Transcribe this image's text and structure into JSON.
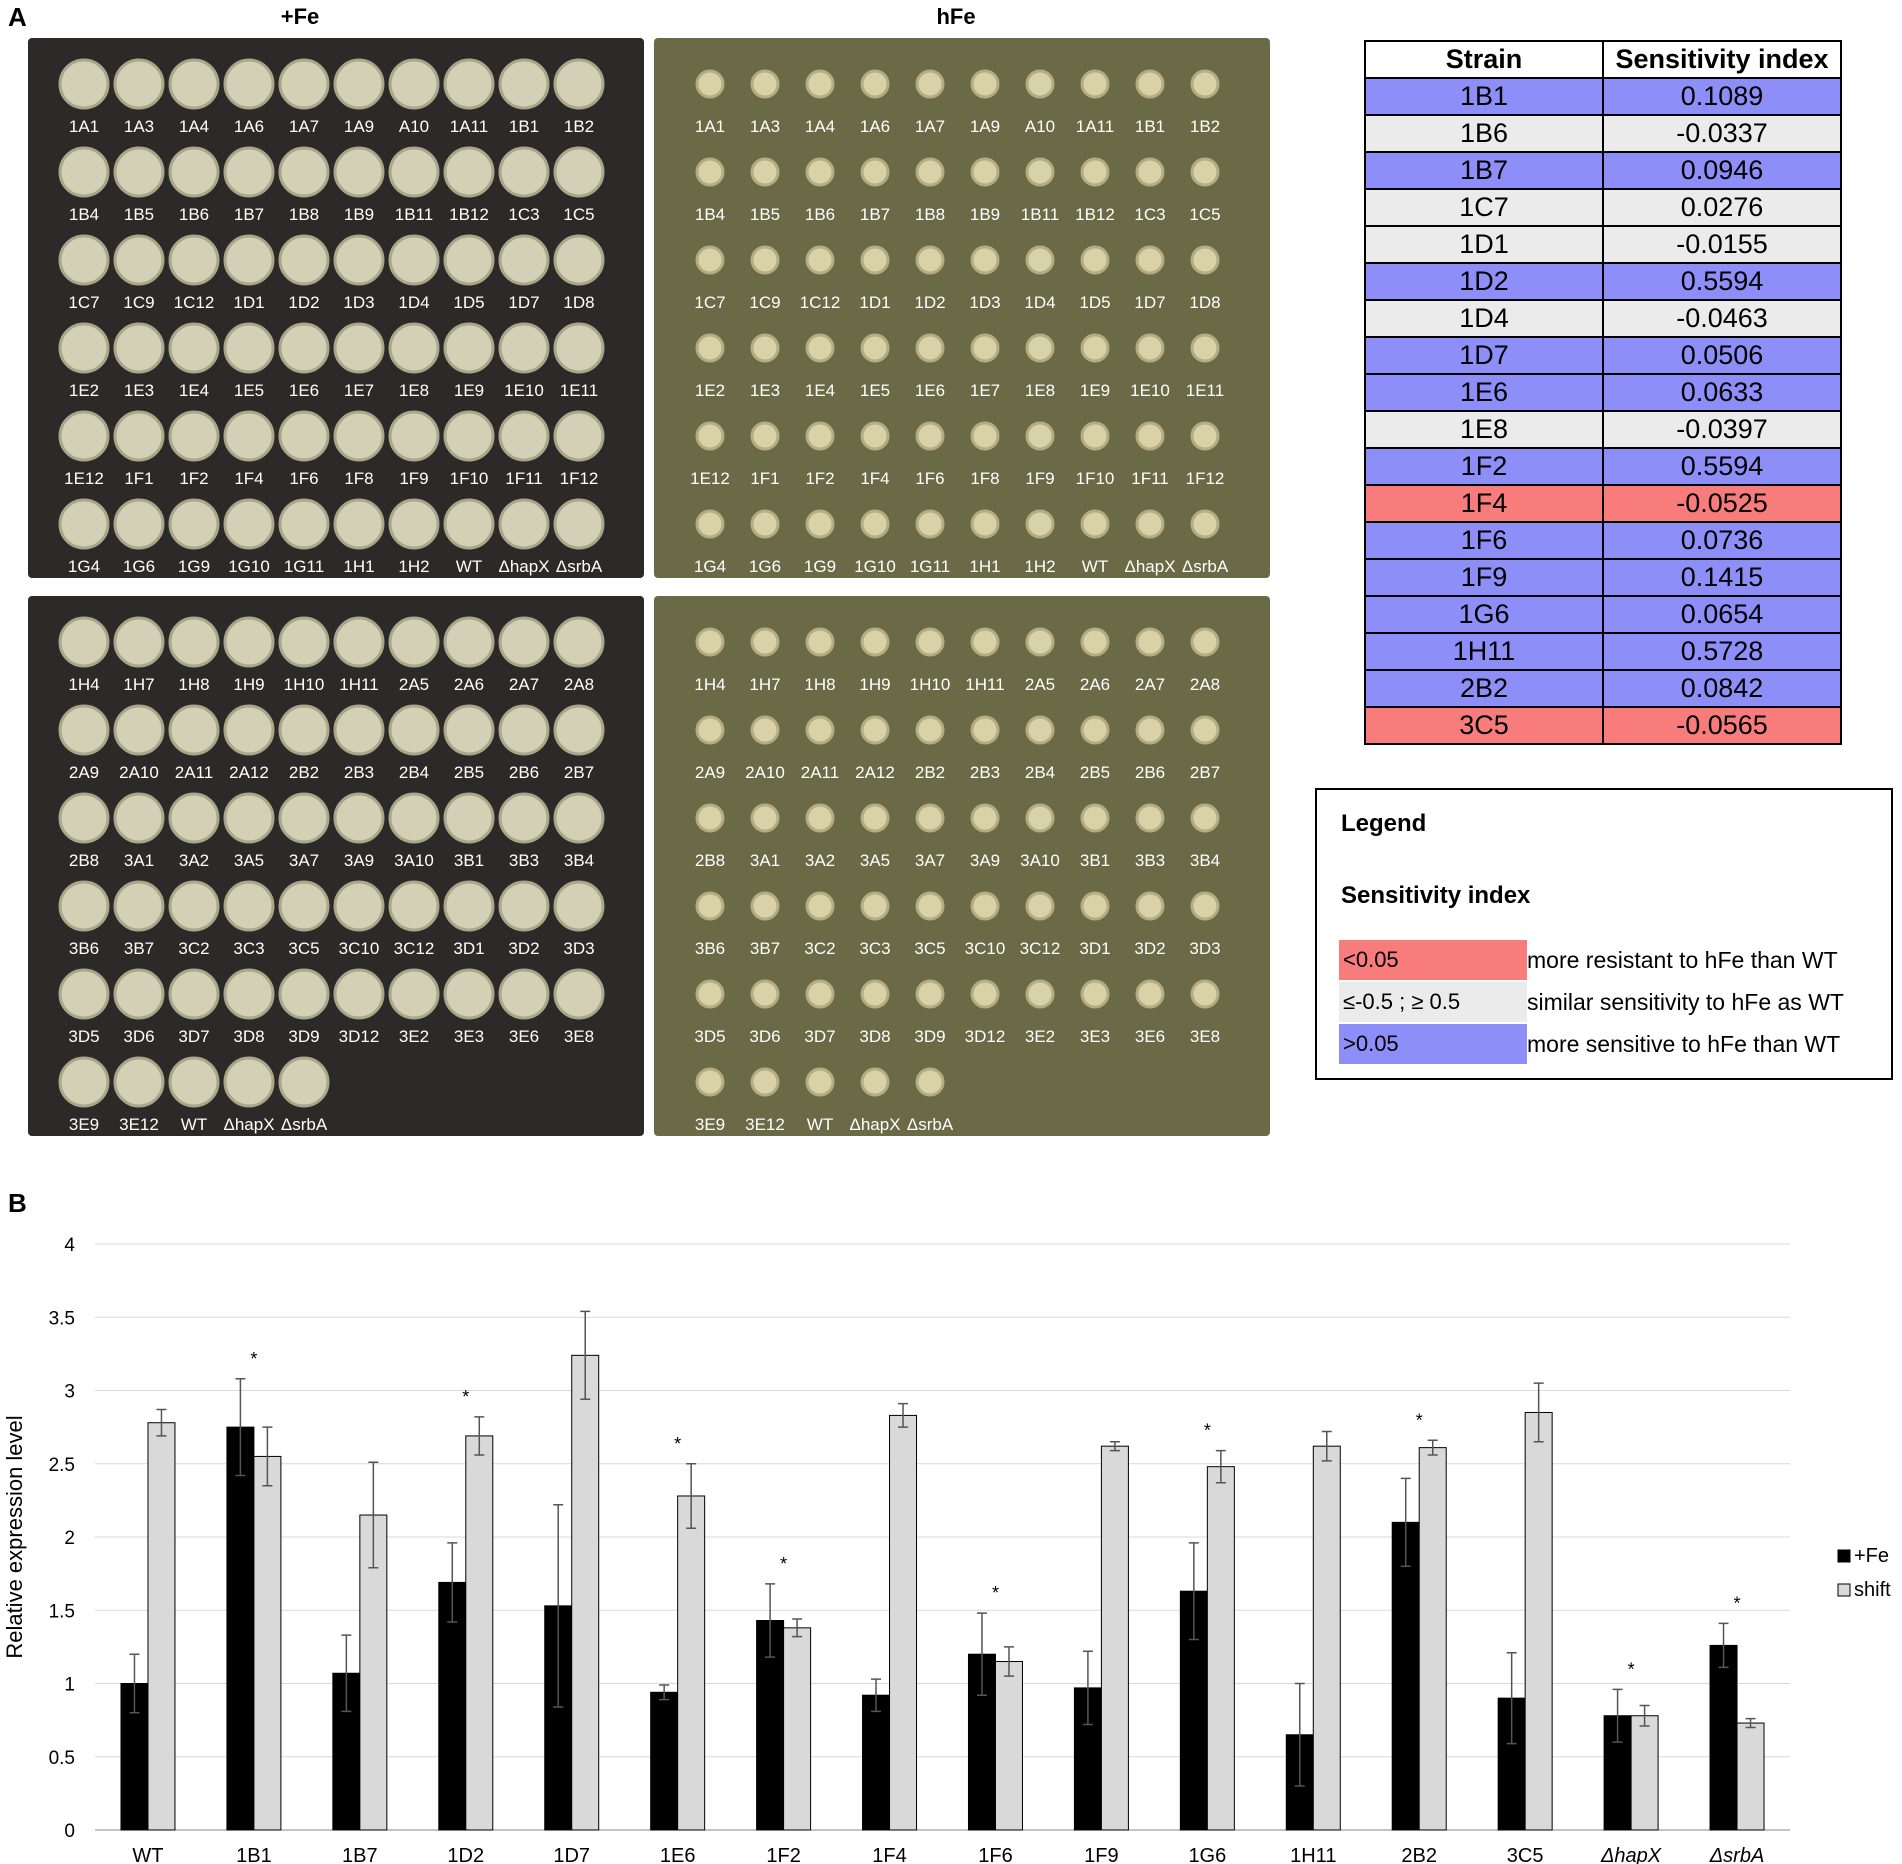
{
  "panel_a": {
    "label": "A",
    "plate_titles": [
      "+Fe",
      "hFe"
    ],
    "plate_rows_top": [
      [
        "1A1",
        "1A3",
        "1A4",
        "1A6",
        "1A7",
        "1A9",
        "A10",
        "1A11",
        "1B1",
        "1B2"
      ],
      [
        "1B4",
        "1B5",
        "1B6",
        "1B7",
        "1B8",
        "1B9",
        "1B11",
        "1B12",
        "1C3",
        "1C5"
      ],
      [
        "1C7",
        "1C9",
        "1C12",
        "1D1",
        "1D2",
        "1D3",
        "1D4",
        "1D5",
        "1D7",
        "1D8"
      ],
      [
        "1E2",
        "1E3",
        "1E4",
        "1E5",
        "1E6",
        "1E7",
        "1E8",
        "1E9",
        "1E10",
        "1E11"
      ],
      [
        "1E12",
        "1F1",
        "1F2",
        "1F4",
        "1F6",
        "1F8",
        "1F9",
        "1F10",
        "1F11",
        "1F12"
      ],
      [
        "1G4",
        "1G6",
        "1G9",
        "1G10",
        "1G11",
        "1H1",
        "1H2",
        "WT",
        "ΔhapX",
        "ΔsrbA"
      ]
    ],
    "plate_rows_bottom": [
      [
        "1H4",
        "1H7",
        "1H8",
        "1H9",
        "1H10",
        "1H11",
        "2A5",
        "2A6",
        "2A7",
        "2A8"
      ],
      [
        "2A9",
        "2A10",
        "2A11",
        "2A12",
        "2B2",
        "2B3",
        "2B4",
        "2B5",
        "2B6",
        "2B7"
      ],
      [
        "2B8",
        "3A1",
        "3A2",
        "3A5",
        "3A7",
        "3A9",
        "3A10",
        "3B1",
        "3B3",
        "3B4"
      ],
      [
        "3B6",
        "3B7",
        "3C2",
        "3C3",
        "3C5",
        "3C10",
        "3C12",
        "3D1",
        "3D2",
        "3D3"
      ],
      [
        "3D5",
        "3D6",
        "3D7",
        "3D8",
        "3D9",
        "3D12",
        "3E2",
        "3E3",
        "3E6",
        "3E8"
      ],
      [
        "3E9",
        "3E12",
        "WT",
        "ΔhapX",
        "ΔsrbA"
      ]
    ],
    "sensitivity_table": {
      "headers": [
        "Strain",
        "Sensitivity index"
      ],
      "rows": [
        {
          "strain": "1B1",
          "index": "0.1089",
          "class": "sensitive"
        },
        {
          "strain": "1B6",
          "index": "-0.0337",
          "class": "similar"
        },
        {
          "strain": "1B7",
          "index": "0.0946",
          "class": "sensitive"
        },
        {
          "strain": "1C7",
          "index": "0.0276",
          "class": "similar"
        },
        {
          "strain": "1D1",
          "index": "-0.0155",
          "class": "similar"
        },
        {
          "strain": "1D2",
          "index": "0.5594",
          "class": "sensitive"
        },
        {
          "strain": "1D4",
          "index": "-0.0463",
          "class": "similar"
        },
        {
          "strain": "1D7",
          "index": "0.0506",
          "class": "sensitive"
        },
        {
          "strain": "1E6",
          "index": "0.0633",
          "class": "sensitive"
        },
        {
          "strain": "1E8",
          "index": "-0.0397",
          "class": "similar"
        },
        {
          "strain": "1F2",
          "index": "0.5594",
          "class": "sensitive"
        },
        {
          "strain": "1F4",
          "index": "-0.0525",
          "class": "resistant"
        },
        {
          "strain": "1F6",
          "index": "0.0736",
          "class": "sensitive"
        },
        {
          "strain": "1F9",
          "index": "0.1415",
          "class": "sensitive"
        },
        {
          "strain": "1G6",
          "index": "0.0654",
          "class": "sensitive"
        },
        {
          "strain": "1H11",
          "index": "0.5728",
          "class": "sensitive"
        },
        {
          "strain": "2B2",
          "index": "0.0842",
          "class": "sensitive"
        },
        {
          "strain": "3C5",
          "index": "-0.0565",
          "class": "resistant"
        }
      ]
    },
    "colors": {
      "sensitive": "#8e8ef8",
      "similar": "#ebebeb",
      "resistant": "#f87c7c"
    },
    "legend": {
      "title": "Legend",
      "subtitle": "Sensitivity index",
      "items": [
        {
          "range": "<0.05",
          "text": "more resistant to hFe than WT",
          "class": "resistant"
        },
        {
          "range": "≤-0.5 ; ≥ 0.5",
          "text": "similar sensitivity to hFe as WT",
          "class": "similar"
        },
        {
          "range": ">0.05",
          "text": "more sensitive to hFe than WT",
          "class": "sensitive"
        }
      ]
    }
  },
  "panel_b": {
    "label": "B"
  },
  "chart_data": {
    "type": "bar",
    "title": "",
    "xlabel": "",
    "ylabel": "Relative expression level",
    "ylim": [
      0,
      4
    ],
    "yticks": [
      "0",
      "0.5",
      "1",
      "1.5",
      "2",
      "2.5",
      "3",
      "3.5",
      "4"
    ],
    "categories": [
      "WT",
      "1B1",
      "1B7",
      "1D2",
      "1D7",
      "1E6",
      "1F2",
      "1F4",
      "1F6",
      "1F9",
      "1G6",
      "1H11",
      "2B2",
      "3C5",
      "ΔhapX",
      "ΔsrbA"
    ],
    "series": [
      {
        "name": "+Fe",
        "color": "#000000",
        "values": [
          1.0,
          2.75,
          1.07,
          1.69,
          1.53,
          0.94,
          1.43,
          0.92,
          1.2,
          0.97,
          1.63,
          0.65,
          2.1,
          0.9,
          0.78,
          1.26
        ],
        "errors": [
          0.2,
          0.33,
          0.26,
          0.27,
          0.69,
          0.05,
          0.25,
          0.11,
          0.28,
          0.25,
          0.33,
          0.35,
          0.3,
          0.31,
          0.18,
          0.15
        ]
      },
      {
        "name": "shift",
        "color": "#d9d9d9",
        "values": [
          2.78,
          2.55,
          2.15,
          2.69,
          3.24,
          2.28,
          1.38,
          2.83,
          1.15,
          2.62,
          2.48,
          2.62,
          2.61,
          2.85,
          0.78,
          0.73
        ],
        "errors": [
          0.09,
          0.2,
          0.36,
          0.13,
          0.3,
          0.22,
          0.06,
          0.08,
          0.1,
          0.03,
          0.11,
          0.1,
          0.05,
          0.2,
          0.07,
          0.03
        ]
      }
    ],
    "significance": [
      false,
      true,
      false,
      true,
      false,
      true,
      true,
      false,
      true,
      false,
      true,
      false,
      true,
      false,
      true,
      true
    ],
    "sig_marker": "*",
    "legend_position": "right",
    "grid": true
  }
}
